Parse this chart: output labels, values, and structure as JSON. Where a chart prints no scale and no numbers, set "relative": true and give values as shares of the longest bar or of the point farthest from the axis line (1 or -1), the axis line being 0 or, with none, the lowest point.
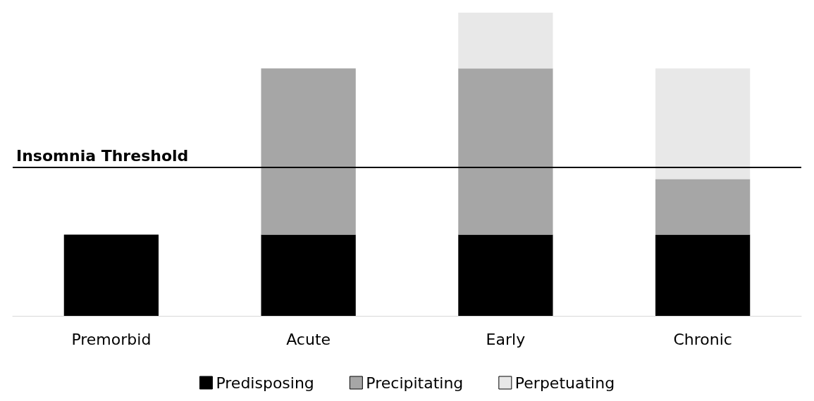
{
  "chart_data": {
    "type": "bar",
    "stacked": true,
    "relative": true,
    "categories": [
      "Premorbid",
      "Acute",
      "Early",
      "Chronic"
    ],
    "series": [
      {
        "name": "Predisposing",
        "color": "#000000",
        "values": [
          0.268,
          0.268,
          0.268,
          0.268
        ]
      },
      {
        "name": "Precipitating",
        "color": "#a6a6a6",
        "values": [
          null,
          0.548,
          0.548,
          0.183
        ]
      },
      {
        "name": "Perpetuating",
        "color": "#e8e8e8",
        "values": [
          null,
          null,
          0.184,
          0.365
        ]
      }
    ],
    "ref_lines": [
      {
        "axis": "y",
        "value": 0.492,
        "label": "Insomnia Threshold",
        "color": "#000000",
        "line_style": "solid"
      }
    ],
    "legend": "bottom",
    "grid": false
  }
}
